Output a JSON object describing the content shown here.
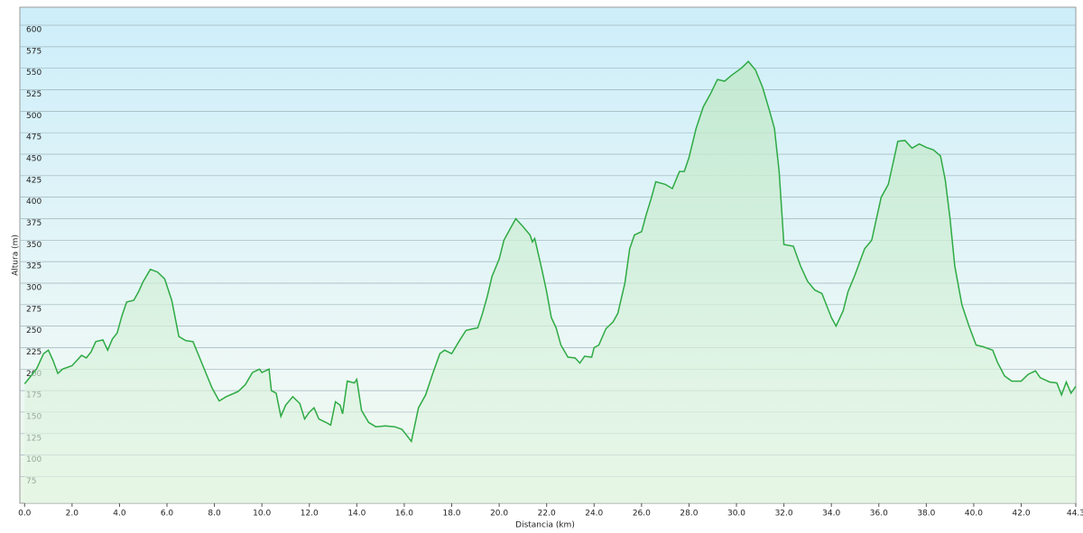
{
  "chart_data": {
    "type": "area",
    "xlabel": "Distancia  (km)",
    "ylabel": "Altura (m)",
    "color": "#2eaa44",
    "x": [
      0,
      0.5,
      0.8,
      1.0,
      1.2,
      1.4,
      1.6,
      2.0,
      2.4,
      2.6,
      2.8,
      3.0,
      3.3,
      3.5,
      3.7,
      3.9,
      4.1,
      4.3,
      4.6,
      4.8,
      5.0,
      5.3,
      5.6,
      5.9,
      6.2,
      6.5,
      6.8,
      7.1,
      7.5,
      7.9,
      8.2,
      8.5,
      9.0,
      9.3,
      9.6,
      9.9,
      10.0,
      10.3,
      10.4,
      10.6,
      10.8,
      11.0,
      11.3,
      11.6,
      11.8,
      12.0,
      12.2,
      12.4,
      12.7,
      12.9,
      13.1,
      13.3,
      13.4,
      13.6,
      13.9,
      14.0,
      14.2,
      14.5,
      14.8,
      15.2,
      15.6,
      15.9,
      16.1,
      16.3,
      16.6,
      16.9,
      17.2,
      17.5,
      17.7,
      18.0,
      18.3,
      18.6,
      18.9,
      19.1,
      19.3,
      19.5,
      19.7,
      20.0,
      20.2,
      20.5,
      20.7,
      21.0,
      21.3,
      21.4,
      21.5,
      21.8,
      22.0,
      22.2,
      22.4,
      22.6,
      22.9,
      23.2,
      23.4,
      23.6,
      23.9,
      24.0,
      24.2,
      24.5,
      24.8,
      25.0,
      25.3,
      25.5,
      25.7,
      26.0,
      26.2,
      26.4,
      26.6,
      27.0,
      27.3,
      27.6,
      27.8,
      28.0,
      28.3,
      28.6,
      28.9,
      29.2,
      29.5,
      29.8,
      30.2,
      30.5,
      30.8,
      31.1,
      31.4,
      31.6,
      31.8,
      32.0,
      32.4,
      32.7,
      33.0,
      33.3,
      33.6,
      34.0,
      34.2,
      34.5,
      34.7,
      35.0,
      35.4,
      35.7,
      35.9,
      36.1,
      36.4,
      36.6,
      36.8,
      37.1,
      37.4,
      37.7,
      38.0,
      38.3,
      38.6,
      38.8,
      39.0,
      39.2,
      39.5,
      39.8,
      40.1,
      40.4,
      40.8,
      41.0,
      41.3,
      41.6,
      42.0,
      42.3,
      42.6,
      42.8,
      43.2,
      43.5,
      43.7,
      43.9,
      44.1,
      44.3
    ],
    "values": [
      183,
      200,
      218,
      222,
      210,
      195,
      200,
      204,
      216,
      213,
      220,
      232,
      234,
      222,
      235,
      242,
      262,
      278,
      280,
      290,
      302,
      316,
      313,
      305,
      280,
      238,
      233,
      232,
      205,
      178,
      163,
      168,
      174,
      182,
      196,
      200,
      196,
      200,
      175,
      172,
      145,
      158,
      168,
      160,
      142,
      150,
      155,
      142,
      138,
      135,
      162,
      158,
      148,
      186,
      184,
      188,
      152,
      138,
      133,
      134,
      133,
      130,
      123,
      116,
      155,
      170,
      195,
      218,
      222,
      218,
      232,
      245,
      247,
      248,
      265,
      285,
      308,
      328,
      350,
      365,
      375,
      366,
      356,
      348,
      352,
      316,
      290,
      260,
      248,
      228,
      214,
      213,
      207,
      215,
      214,
      225,
      228,
      247,
      255,
      265,
      300,
      340,
      356,
      360,
      380,
      398,
      418,
      415,
      410,
      430,
      430,
      446,
      480,
      505,
      520,
      537,
      535,
      542,
      550,
      558,
      548,
      528,
      500,
      480,
      430,
      345,
      343,
      320,
      302,
      292,
      288,
      260,
      250,
      268,
      290,
      310,
      340,
      350,
      375,
      400,
      415,
      440,
      465,
      466,
      457,
      462,
      458,
      455,
      448,
      420,
      375,
      320,
      275,
      250,
      228,
      226,
      222,
      208,
      192,
      186,
      186,
      194,
      198,
      190,
      185,
      184,
      170,
      185,
      172,
      180
    ],
    "xlim": [
      -0.2,
      44.3
    ],
    "ylim": [
      44,
      621
    ],
    "xticks": [
      {
        "value": 0,
        "label": "0.0"
      },
      {
        "value": 2,
        "label": "2.0"
      },
      {
        "value": 4,
        "label": "4.0"
      },
      {
        "value": 6,
        "label": "6.0"
      },
      {
        "value": 8,
        "label": "8.0"
      },
      {
        "value": 10,
        "label": "10.0"
      },
      {
        "value": 12,
        "label": "12.0"
      },
      {
        "value": 14,
        "label": "14.0"
      },
      {
        "value": 16,
        "label": "16.0"
      },
      {
        "value": 18,
        "label": "18.0"
      },
      {
        "value": 20,
        "label": "20.0"
      },
      {
        "value": 22,
        "label": "22.0"
      },
      {
        "value": 24,
        "label": "24.0"
      },
      {
        "value": 26,
        "label": "26.0"
      },
      {
        "value": 28,
        "label": "28.0"
      },
      {
        "value": 30,
        "label": "30.0"
      },
      {
        "value": 32,
        "label": "32.0"
      },
      {
        "value": 34,
        "label": "34.0"
      },
      {
        "value": 36,
        "label": "36.0"
      },
      {
        "value": 38,
        "label": "38.0"
      },
      {
        "value": 40,
        "label": "40.0"
      },
      {
        "value": 42,
        "label": "42.0"
      },
      44.3
    ],
    "yticks": [
      75,
      100,
      125,
      150,
      175,
      200,
      225,
      250,
      275,
      300,
      325,
      350,
      375,
      400,
      425,
      450,
      475,
      500,
      525,
      550,
      575,
      600
    ],
    "grid": true
  }
}
